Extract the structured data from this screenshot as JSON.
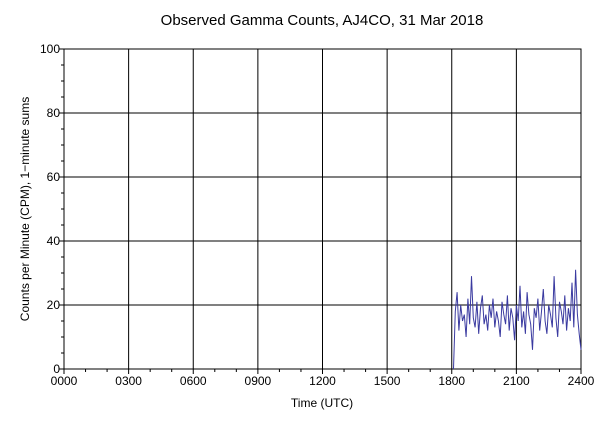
{
  "chart_data": {
    "type": "line",
    "title": "Observed Gamma Counts, AJ4CO, 31 Mar 2018",
    "xlabel": "Time (UTC)",
    "ylabel": "Counts per Minute (CPM), 1−minute sums",
    "xlim": [
      0,
      1440
    ],
    "ylim": [
      0,
      100
    ],
    "x_unit": "minutes since 0000 UTC",
    "x_tick_labels": [
      "0000",
      "0300",
      "0600",
      "0900",
      "1200",
      "1500",
      "1800",
      "2100",
      "2400"
    ],
    "y_tick_labels": [
      "0",
      "20",
      "40",
      "60",
      "80",
      "100"
    ],
    "grid": true,
    "legend": "none",
    "series_color": "#3a3aa0",
    "series": [
      {
        "name": "",
        "x": [
          1085,
          1090,
          1095,
          1100,
          1105,
          1110,
          1115,
          1120,
          1125,
          1130,
          1135,
          1140,
          1145,
          1150,
          1155,
          1160,
          1165,
          1170,
          1175,
          1180,
          1185,
          1190,
          1195,
          1200,
          1205,
          1210,
          1215,
          1220,
          1225,
          1230,
          1235,
          1240,
          1245,
          1250,
          1255,
          1260,
          1265,
          1270,
          1275,
          1280,
          1285,
          1290,
          1295,
          1300,
          1305,
          1310,
          1315,
          1320,
          1325,
          1330,
          1335,
          1340,
          1345,
          1350,
          1355,
          1360,
          1365,
          1370,
          1375,
          1380,
          1385,
          1390,
          1395,
          1400,
          1405,
          1410,
          1415,
          1420,
          1425,
          1430,
          1435,
          1440
        ],
        "y": [
          0,
          18,
          24,
          12,
          20,
          15,
          17,
          10,
          22,
          14,
          29,
          16,
          13,
          21,
          11,
          19,
          23,
          14,
          17,
          12,
          20,
          16,
          22,
          13,
          18,
          15,
          10,
          21,
          17,
          14,
          23,
          12,
          19,
          16,
          9,
          20,
          15,
          26,
          13,
          18,
          11,
          24,
          17,
          14,
          6,
          19,
          16,
          22,
          12,
          18,
          25,
          15,
          11,
          20,
          17,
          13,
          29,
          16,
          10,
          21,
          18,
          14,
          23,
          12,
          19,
          15,
          27,
          13,
          31,
          17,
          11,
          6
        ]
      }
    ]
  }
}
